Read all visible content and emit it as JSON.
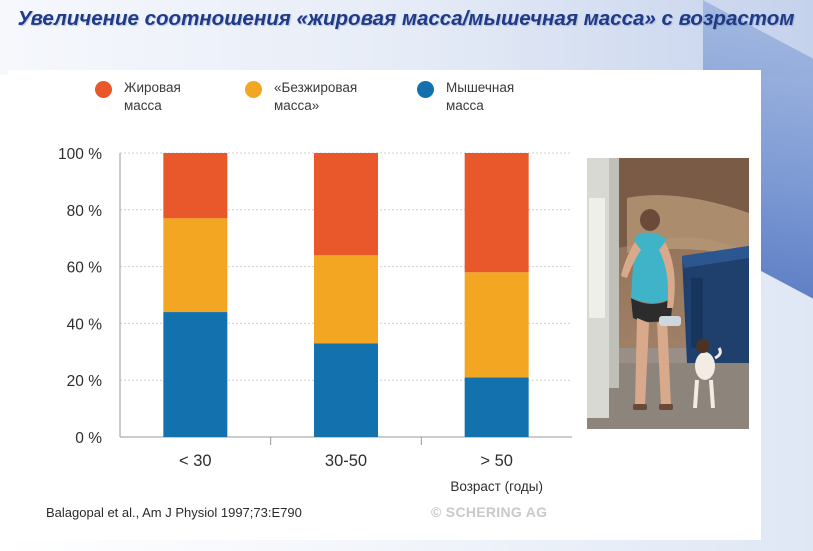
{
  "title": "Увеличение соотношения «жировая масса/мышечная масса» с возрастом",
  "legend": [
    {
      "label": "Жировая\nмасса",
      "color": "#e8582b"
    },
    {
      "label": "«Безжировая\nмасса»",
      "color": "#f3a622"
    },
    {
      "label": "Мышечная\nмасса",
      "color": "#1372ae"
    }
  ],
  "citation": "Balagopal et al., Am J Physiol 1997;73:E790",
  "watermark": "© SCHERING AG",
  "photo": {
    "description_icon": "person-with-dog-photo"
  },
  "chart_data": {
    "type": "bar",
    "stacked": true,
    "categories": [
      "< 30",
      "30-50",
      "> 50"
    ],
    "xlabel": "Возраст (годы)",
    "ylabel": "",
    "ylim": [
      0,
      100
    ],
    "yticks": [
      "0 %",
      "20 %",
      "40 %",
      "60 %",
      "80 %",
      "100 %"
    ],
    "grid": true,
    "legend_position": "top",
    "series": [
      {
        "name": "Мышечная масса",
        "color": "#1372ae",
        "values": [
          44,
          33,
          21
        ]
      },
      {
        "name": "«Безжировая масса»",
        "color": "#f3a622",
        "values": [
          33,
          31,
          37
        ]
      },
      {
        "name": "Жировая масса",
        "color": "#e8582b",
        "values": [
          23,
          36,
          42
        ]
      }
    ]
  }
}
